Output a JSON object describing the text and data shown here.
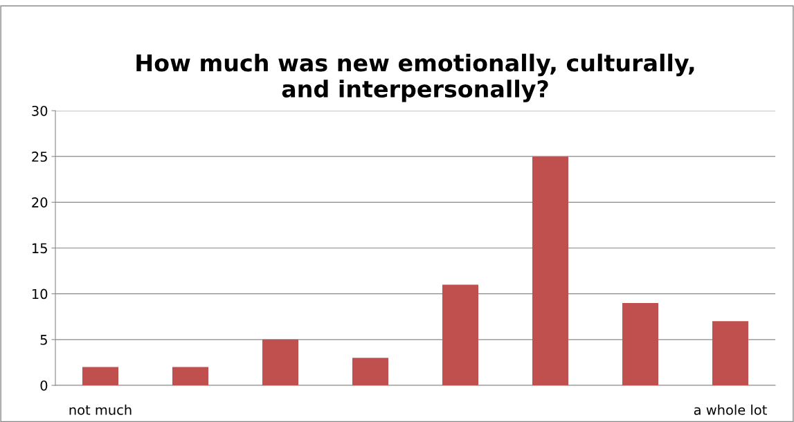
{
  "chart_data": {
    "type": "bar",
    "title": "How much was new emotionally, culturally,\nand interpersonally?",
    "categories": [
      "not much",
      null,
      null,
      null,
      null,
      null,
      null,
      "a whole lot"
    ],
    "values": [
      2,
      2,
      5,
      3,
      11,
      25,
      9,
      7
    ],
    "color": "#c0504d",
    "ylim": [
      0,
      30
    ],
    "yticks": [
      0,
      5,
      10,
      15,
      20,
      25,
      30
    ],
    "grid": "y"
  }
}
